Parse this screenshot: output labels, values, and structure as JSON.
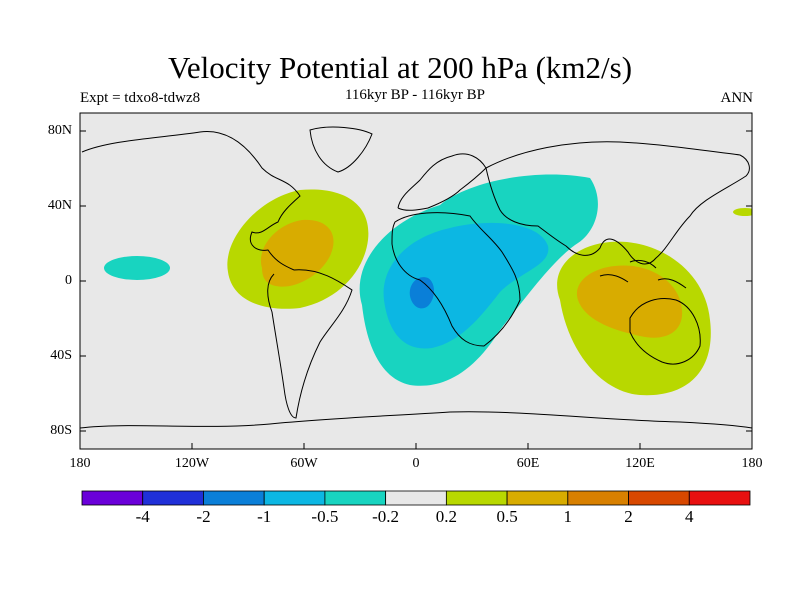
{
  "title": "Velocity Potential at 200 hPa (km2/s)",
  "subtitle": "116kyr BP - 116kyr BP",
  "experiment": "Expt = tdxo8-tdwz8",
  "season": "ANN",
  "lat_ticks": [
    "80N",
    "40N",
    "0",
    "40S",
    "80S"
  ],
  "lon_ticks": [
    "180",
    "120W",
    "60W",
    "0",
    "60E",
    "120E",
    "180"
  ],
  "colorbar": {
    "colors": [
      "#6a00d9",
      "#2030d8",
      "#0a7fd8",
      "#0cb7e3",
      "#18d4c0",
      "#e8e8e8",
      "#b8d800",
      "#d8ac00",
      "#d88000",
      "#d84800",
      "#e81010"
    ],
    "labels": [
      "-4",
      "-2",
      "-1",
      "-0.5",
      "-0.2",
      "0.2",
      "0.5",
      "1",
      "2",
      "4"
    ]
  },
  "colors": {
    "background": "#e8e8e8",
    "coast": "#000000"
  }
}
